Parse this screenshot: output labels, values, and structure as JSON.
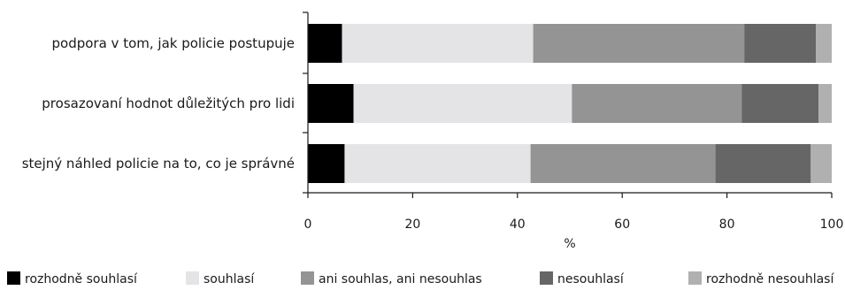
{
  "chart_data": {
    "type": "bar",
    "orientation": "horizontal",
    "stacked": true,
    "categories": [
      "podpora v tom, jak policie postupuje",
      "prosazovaní hodnot důležitých pro lidi",
      "stejný náhled policie na to, co je správné"
    ],
    "series": [
      {
        "name": "rozhodně souhlasí",
        "color": "#000000",
        "values": [
          6.5,
          8.7,
          7.0
        ]
      },
      {
        "name": "souhlasí",
        "color": "#e4e4e6",
        "values": [
          36.5,
          41.7,
          35.5
        ]
      },
      {
        "name": "ani souhlas, ani nesouhlas",
        "color": "#949494",
        "values": [
          40.3,
          32.4,
          35.3
        ]
      },
      {
        "name": "nesouhlasí",
        "color": "#666666",
        "values": [
          13.7,
          14.7,
          18.2
        ]
      },
      {
        "name": "rozhodně nesouhlasí",
        "color": "#b0b0b0",
        "values": [
          3.0,
          2.5,
          4.0
        ]
      }
    ],
    "xlabel": "%",
    "ylabel": "",
    "xlim": [
      0,
      100
    ],
    "xticks": [
      0,
      20,
      40,
      60,
      80,
      100
    ],
    "grid": false,
    "legend": "bottom"
  }
}
